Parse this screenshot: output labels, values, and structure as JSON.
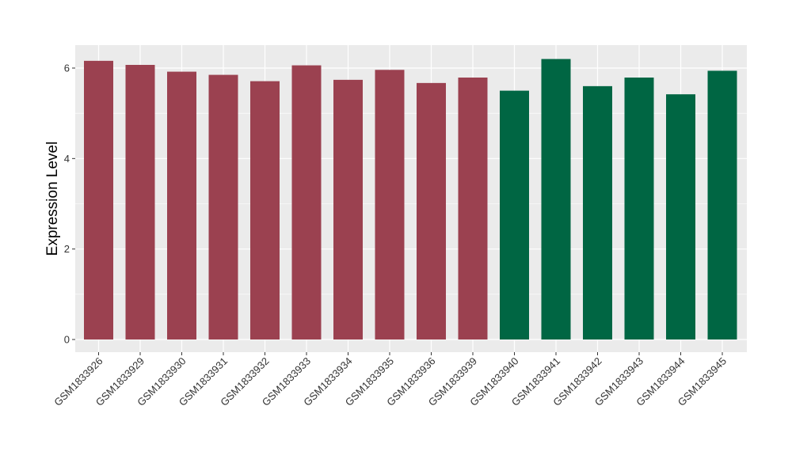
{
  "chart_data": {
    "type": "bar",
    "xlabel": "",
    "ylabel": "Expression Level",
    "ylim": [
      0,
      6.5
    ],
    "yticks": [
      0,
      2,
      4,
      6
    ],
    "grid": true,
    "background": "#ebebeb",
    "colors": {
      "group_1": "#9b4150",
      "group_2": "#006643"
    },
    "categories": [
      "GSM1833926",
      "GSM1833929",
      "GSM1833930",
      "GSM1833931",
      "GSM1833932",
      "GSM1833933",
      "GSM1833934",
      "GSM1833935",
      "GSM1833936",
      "GSM1833939",
      "GSM1833940",
      "GSM1833941",
      "GSM1833942",
      "GSM1833943",
      "GSM1833944",
      "GSM1833945"
    ],
    "values": [
      6.16,
      6.07,
      5.92,
      5.85,
      5.71,
      6.06,
      5.74,
      5.96,
      5.67,
      5.79,
      5.5,
      6.2,
      5.6,
      5.79,
      5.42,
      5.94
    ],
    "groups": [
      "group_1",
      "group_1",
      "group_1",
      "group_1",
      "group_1",
      "group_1",
      "group_1",
      "group_1",
      "group_1",
      "group_1",
      "group_2",
      "group_2",
      "group_2",
      "group_2",
      "group_2",
      "group_2"
    ]
  }
}
